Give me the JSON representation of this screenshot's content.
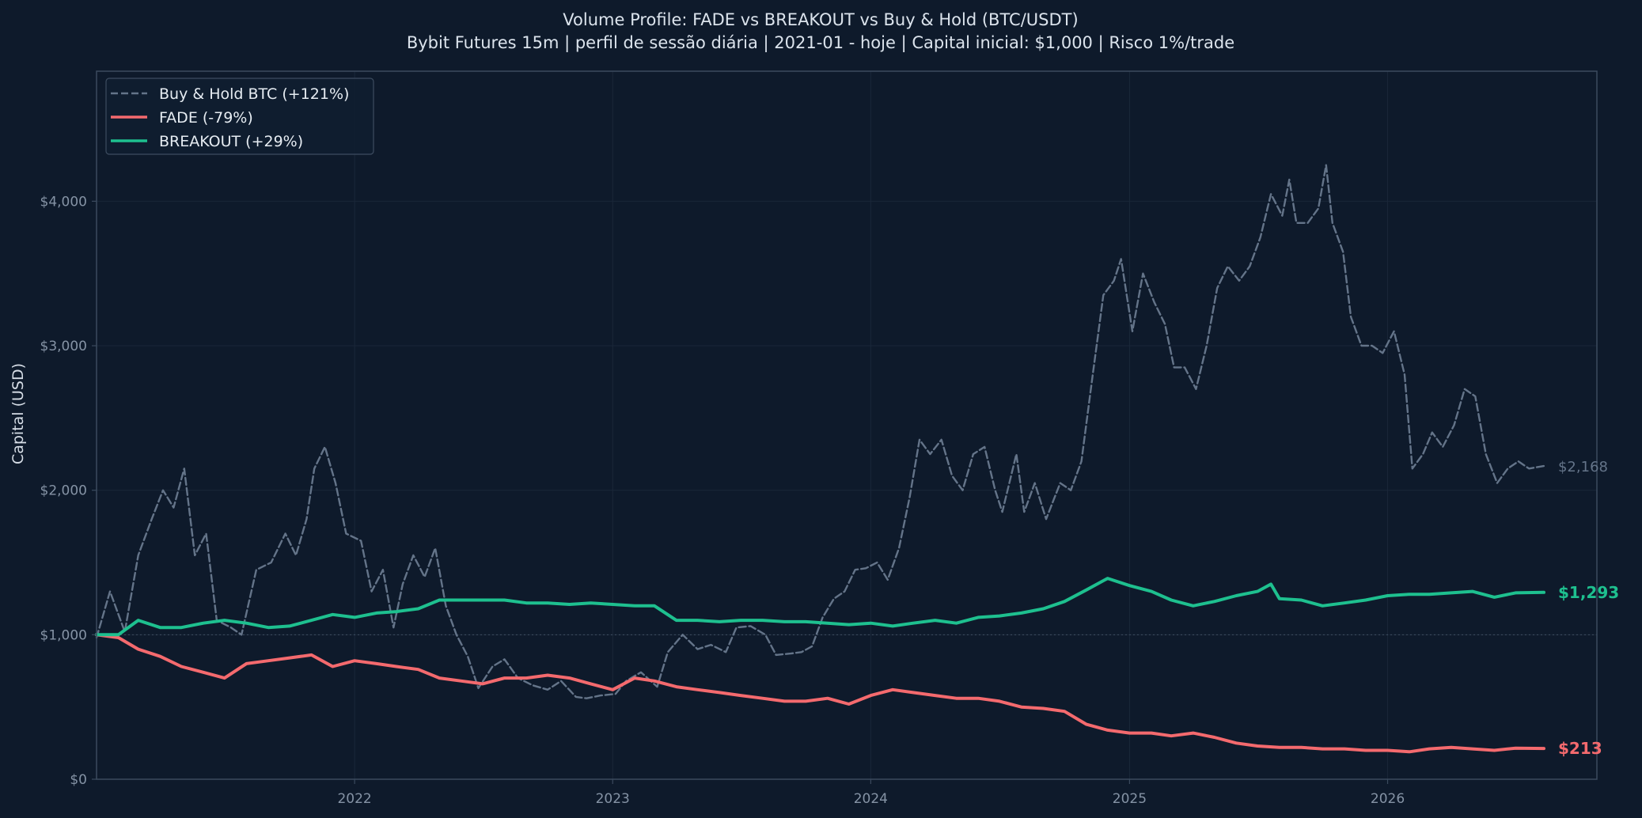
{
  "colors": {
    "background": "#0e1a2b",
    "plot_bg": "#0e1a2b",
    "grid": "#1a2739",
    "frame": "#3b4a5e",
    "text": "#d7dee7",
    "tick": "#8593a5",
    "buy_hold": "#647489",
    "fade": "#f46a6e",
    "breakout": "#1ec08f",
    "baseline": "#4a5a6e"
  },
  "chart_data": {
    "type": "line",
    "title": "Volume Profile: FADE vs BREAKOUT vs Buy & Hold (BTC/USDT)",
    "subtitle": "Bybit Futures 15m | perfil de sessão diária | 2021-01 - hoje | Capital inicial: $1,000 | Risco 1%/trade",
    "xlabel": "",
    "ylabel": "Capital (USD)",
    "xlim": [
      "2021-01-01",
      "2026-10-24"
    ],
    "ylim": [
      0,
      4900
    ],
    "x_ticks": [
      {
        "x": "2022-01-01",
        "label": "2022"
      },
      {
        "x": "2023-01-01",
        "label": "2023"
      },
      {
        "x": "2024-01-01",
        "label": "2024"
      },
      {
        "x": "2025-01-01",
        "label": "2025"
      },
      {
        "x": "2026-01-01",
        "label": "2026"
      }
    ],
    "y_ticks": [
      {
        "y": 0,
        "label": "$0"
      },
      {
        "y": 1000,
        "label": "$1,000"
      },
      {
        "y": 2000,
        "label": "$2,000"
      },
      {
        "y": 3000,
        "label": "$3,000"
      },
      {
        "y": 4000,
        "label": "$4,000"
      }
    ],
    "grid": true,
    "baseline": 1000,
    "legend_position": "top-left",
    "series": [
      {
        "name": "Buy & Hold BTC (+121%)",
        "style": "dashed",
        "end_label": "$2,168",
        "points": [
          [
            "2021-01-01",
            980
          ],
          [
            "2021-01-20",
            1300
          ],
          [
            "2021-02-10",
            1020
          ],
          [
            "2021-03-01",
            1550
          ],
          [
            "2021-03-20",
            1800
          ],
          [
            "2021-04-05",
            2000
          ],
          [
            "2021-04-20",
            1880
          ],
          [
            "2021-05-05",
            2150
          ],
          [
            "2021-05-20",
            1550
          ],
          [
            "2021-06-05",
            1700
          ],
          [
            "2021-06-20",
            1100
          ],
          [
            "2021-07-10",
            1050
          ],
          [
            "2021-07-25",
            1000
          ],
          [
            "2021-08-15",
            1450
          ],
          [
            "2021-09-05",
            1500
          ],
          [
            "2021-09-25",
            1700
          ],
          [
            "2021-10-10",
            1550
          ],
          [
            "2021-10-25",
            1800
          ],
          [
            "2021-11-05",
            2150
          ],
          [
            "2021-11-20",
            2300
          ],
          [
            "2021-12-05",
            2050
          ],
          [
            "2021-12-20",
            1700
          ],
          [
            "2022-01-10",
            1650
          ],
          [
            "2022-01-25",
            1300
          ],
          [
            "2022-02-10",
            1450
          ],
          [
            "2022-02-25",
            1050
          ],
          [
            "2022-03-10",
            1350
          ],
          [
            "2022-03-25",
            1550
          ],
          [
            "2022-04-10",
            1400
          ],
          [
            "2022-04-25",
            1600
          ],
          [
            "2022-05-10",
            1200
          ],
          [
            "2022-05-25",
            1000
          ],
          [
            "2022-06-10",
            850
          ],
          [
            "2022-06-25",
            630
          ],
          [
            "2022-07-15",
            780
          ],
          [
            "2022-08-01",
            830
          ],
          [
            "2022-08-20",
            700
          ],
          [
            "2022-09-10",
            650
          ],
          [
            "2022-10-01",
            620
          ],
          [
            "2022-10-20",
            680
          ],
          [
            "2022-11-10",
            570
          ],
          [
            "2022-11-25",
            560
          ],
          [
            "2022-12-15",
            580
          ],
          [
            "2023-01-05",
            590
          ],
          [
            "2023-01-20",
            680
          ],
          [
            "2023-02-10",
            740
          ],
          [
            "2023-03-05",
            640
          ],
          [
            "2023-03-20",
            880
          ],
          [
            "2023-04-10",
            1000
          ],
          [
            "2023-05-01",
            900
          ],
          [
            "2023-05-20",
            930
          ],
          [
            "2023-06-10",
            880
          ],
          [
            "2023-06-25",
            1050
          ],
          [
            "2023-07-15",
            1060
          ],
          [
            "2023-08-05",
            1000
          ],
          [
            "2023-08-20",
            860
          ],
          [
            "2023-09-10",
            870
          ],
          [
            "2023-09-25",
            880
          ],
          [
            "2023-10-10",
            920
          ],
          [
            "2023-10-25",
            1120
          ],
          [
            "2023-11-10",
            1250
          ],
          [
            "2023-11-25",
            1300
          ],
          [
            "2023-12-10",
            1450
          ],
          [
            "2023-12-25",
            1460
          ],
          [
            "2024-01-10",
            1500
          ],
          [
            "2024-01-25",
            1380
          ],
          [
            "2024-02-10",
            1600
          ],
          [
            "2024-02-25",
            1950
          ],
          [
            "2024-03-10",
            2350
          ],
          [
            "2024-03-25",
            2250
          ],
          [
            "2024-04-10",
            2350
          ],
          [
            "2024-04-25",
            2100
          ],
          [
            "2024-05-10",
            2000
          ],
          [
            "2024-05-25",
            2250
          ],
          [
            "2024-06-10",
            2300
          ],
          [
            "2024-06-25",
            2000
          ],
          [
            "2024-07-05",
            1850
          ],
          [
            "2024-07-25",
            2250
          ],
          [
            "2024-08-05",
            1850
          ],
          [
            "2024-08-20",
            2050
          ],
          [
            "2024-09-05",
            1800
          ],
          [
            "2024-09-25",
            2050
          ],
          [
            "2024-10-10",
            2000
          ],
          [
            "2024-10-25",
            2200
          ],
          [
            "2024-11-10",
            2800
          ],
          [
            "2024-11-25",
            3350
          ],
          [
            "2024-12-10",
            3450
          ],
          [
            "2024-12-20",
            3600
          ],
          [
            "2025-01-05",
            3100
          ],
          [
            "2025-01-20",
            3500
          ],
          [
            "2025-02-05",
            3300
          ],
          [
            "2025-02-20",
            3150
          ],
          [
            "2025-03-05",
            2850
          ],
          [
            "2025-03-20",
            2850
          ],
          [
            "2025-04-05",
            2700
          ],
          [
            "2025-04-20",
            3000
          ],
          [
            "2025-05-05",
            3400
          ],
          [
            "2025-05-20",
            3550
          ],
          [
            "2025-06-05",
            3450
          ],
          [
            "2025-06-20",
            3550
          ],
          [
            "2025-07-05",
            3750
          ],
          [
            "2025-07-20",
            4050
          ],
          [
            "2025-08-05",
            3900
          ],
          [
            "2025-08-15",
            4150
          ],
          [
            "2025-08-25",
            3850
          ],
          [
            "2025-09-10",
            3850
          ],
          [
            "2025-09-25",
            3950
          ],
          [
            "2025-10-06",
            4250
          ],
          [
            "2025-10-15",
            3850
          ],
          [
            "2025-10-30",
            3650
          ],
          [
            "2025-11-10",
            3200
          ],
          [
            "2025-11-25",
            3000
          ],
          [
            "2025-12-10",
            3000
          ],
          [
            "2025-12-25",
            2950
          ],
          [
            "2026-01-10",
            3100
          ],
          [
            "2026-01-25",
            2800
          ],
          [
            "2026-02-05",
            2150
          ],
          [
            "2026-02-20",
            2250
          ],
          [
            "2026-03-05",
            2400
          ],
          [
            "2026-03-20",
            2300
          ],
          [
            "2026-04-05",
            2450
          ],
          [
            "2026-04-20",
            2700
          ],
          [
            "2026-05-05",
            2650
          ],
          [
            "2026-05-20",
            2250
          ],
          [
            "2026-06-05",
            2050
          ],
          [
            "2026-06-20",
            2150
          ],
          [
            "2026-07-05",
            2200
          ],
          [
            "2026-07-20",
            2150
          ],
          [
            "2026-08-10",
            2168
          ]
        ]
      },
      {
        "name": "FADE (-79%)",
        "style": "solid",
        "end_label": "$213",
        "points": [
          [
            "2021-01-01",
            1000
          ],
          [
            "2021-02-01",
            980
          ],
          [
            "2021-03-01",
            900
          ],
          [
            "2021-04-01",
            850
          ],
          [
            "2021-05-01",
            780
          ],
          [
            "2021-06-01",
            740
          ],
          [
            "2021-07-01",
            700
          ],
          [
            "2021-08-01",
            800
          ],
          [
            "2021-09-01",
            820
          ],
          [
            "2021-10-01",
            840
          ],
          [
            "2021-11-01",
            860
          ],
          [
            "2021-12-01",
            780
          ],
          [
            "2022-01-01",
            820
          ],
          [
            "2022-02-01",
            800
          ],
          [
            "2022-03-01",
            780
          ],
          [
            "2022-04-01",
            760
          ],
          [
            "2022-05-01",
            700
          ],
          [
            "2022-06-01",
            680
          ],
          [
            "2022-07-01",
            660
          ],
          [
            "2022-08-01",
            700
          ],
          [
            "2022-09-01",
            700
          ],
          [
            "2022-10-01",
            720
          ],
          [
            "2022-11-01",
            700
          ],
          [
            "2022-12-01",
            660
          ],
          [
            "2023-01-01",
            620
          ],
          [
            "2023-02-01",
            700
          ],
          [
            "2023-03-01",
            680
          ],
          [
            "2023-04-01",
            640
          ],
          [
            "2023-05-01",
            620
          ],
          [
            "2023-06-01",
            600
          ],
          [
            "2023-07-01",
            580
          ],
          [
            "2023-08-01",
            560
          ],
          [
            "2023-09-01",
            540
          ],
          [
            "2023-10-01",
            540
          ],
          [
            "2023-11-01",
            560
          ],
          [
            "2023-12-01",
            520
          ],
          [
            "2024-01-01",
            580
          ],
          [
            "2024-02-01",
            620
          ],
          [
            "2024-03-01",
            600
          ],
          [
            "2024-04-01",
            580
          ],
          [
            "2024-05-01",
            560
          ],
          [
            "2024-06-01",
            560
          ],
          [
            "2024-07-01",
            540
          ],
          [
            "2024-08-01",
            500
          ],
          [
            "2024-09-01",
            490
          ],
          [
            "2024-10-01",
            470
          ],
          [
            "2024-11-01",
            380
          ],
          [
            "2024-12-01",
            340
          ],
          [
            "2025-01-01",
            320
          ],
          [
            "2025-02-01",
            320
          ],
          [
            "2025-03-01",
            300
          ],
          [
            "2025-04-01",
            320
          ],
          [
            "2025-05-01",
            290
          ],
          [
            "2025-06-01",
            250
          ],
          [
            "2025-07-01",
            230
          ],
          [
            "2025-08-01",
            220
          ],
          [
            "2025-09-01",
            220
          ],
          [
            "2025-10-01",
            210
          ],
          [
            "2025-11-01",
            210
          ],
          [
            "2025-12-01",
            200
          ],
          [
            "2026-01-01",
            200
          ],
          [
            "2026-02-01",
            190
          ],
          [
            "2026-03-01",
            210
          ],
          [
            "2026-04-01",
            220
          ],
          [
            "2026-05-01",
            210
          ],
          [
            "2026-06-01",
            200
          ],
          [
            "2026-07-01",
            215
          ],
          [
            "2026-08-10",
            213
          ]
        ]
      },
      {
        "name": "BREAKOUT (+29%)",
        "style": "solid",
        "end_label": "$1,293",
        "points": [
          [
            "2021-01-01",
            1000
          ],
          [
            "2021-02-01",
            1000
          ],
          [
            "2021-03-01",
            1100
          ],
          [
            "2021-04-01",
            1050
          ],
          [
            "2021-05-01",
            1050
          ],
          [
            "2021-06-01",
            1080
          ],
          [
            "2021-07-01",
            1100
          ],
          [
            "2021-08-01",
            1080
          ],
          [
            "2021-09-01",
            1050
          ],
          [
            "2021-10-01",
            1060
          ],
          [
            "2021-11-01",
            1100
          ],
          [
            "2021-12-01",
            1140
          ],
          [
            "2022-01-01",
            1120
          ],
          [
            "2022-02-01",
            1150
          ],
          [
            "2022-03-01",
            1160
          ],
          [
            "2022-04-01",
            1180
          ],
          [
            "2022-05-01",
            1240
          ],
          [
            "2022-06-01",
            1240
          ],
          [
            "2022-07-01",
            1240
          ],
          [
            "2022-08-01",
            1240
          ],
          [
            "2022-09-01",
            1220
          ],
          [
            "2022-10-01",
            1220
          ],
          [
            "2022-11-01",
            1210
          ],
          [
            "2022-12-01",
            1220
          ],
          [
            "2023-01-01",
            1210
          ],
          [
            "2023-02-01",
            1200
          ],
          [
            "2023-03-01",
            1200
          ],
          [
            "2023-04-01",
            1100
          ],
          [
            "2023-05-01",
            1100
          ],
          [
            "2023-06-01",
            1090
          ],
          [
            "2023-07-01",
            1100
          ],
          [
            "2023-08-01",
            1100
          ],
          [
            "2023-09-01",
            1090
          ],
          [
            "2023-10-01",
            1090
          ],
          [
            "2023-11-01",
            1080
          ],
          [
            "2023-12-01",
            1070
          ],
          [
            "2024-01-01",
            1080
          ],
          [
            "2024-02-01",
            1060
          ],
          [
            "2024-03-01",
            1080
          ],
          [
            "2024-04-01",
            1100
          ],
          [
            "2024-05-01",
            1080
          ],
          [
            "2024-06-01",
            1120
          ],
          [
            "2024-07-01",
            1130
          ],
          [
            "2024-08-01",
            1150
          ],
          [
            "2024-09-01",
            1180
          ],
          [
            "2024-10-01",
            1230
          ],
          [
            "2024-11-01",
            1310
          ],
          [
            "2024-12-01",
            1390
          ],
          [
            "2025-01-01",
            1340
          ],
          [
            "2025-02-01",
            1300
          ],
          [
            "2025-03-01",
            1240
          ],
          [
            "2025-04-01",
            1200
          ],
          [
            "2025-05-01",
            1230
          ],
          [
            "2025-06-01",
            1270
          ],
          [
            "2025-07-01",
            1300
          ],
          [
            "2025-07-20",
            1350
          ],
          [
            "2025-08-01",
            1250
          ],
          [
            "2025-09-01",
            1240
          ],
          [
            "2025-10-01",
            1200
          ],
          [
            "2025-11-01",
            1220
          ],
          [
            "2025-12-01",
            1240
          ],
          [
            "2026-01-01",
            1270
          ],
          [
            "2026-02-01",
            1280
          ],
          [
            "2026-03-01",
            1280
          ],
          [
            "2026-04-01",
            1290
          ],
          [
            "2026-05-01",
            1300
          ],
          [
            "2026-06-01",
            1260
          ],
          [
            "2026-07-01",
            1290
          ],
          [
            "2026-08-10",
            1293
          ]
        ]
      }
    ]
  }
}
